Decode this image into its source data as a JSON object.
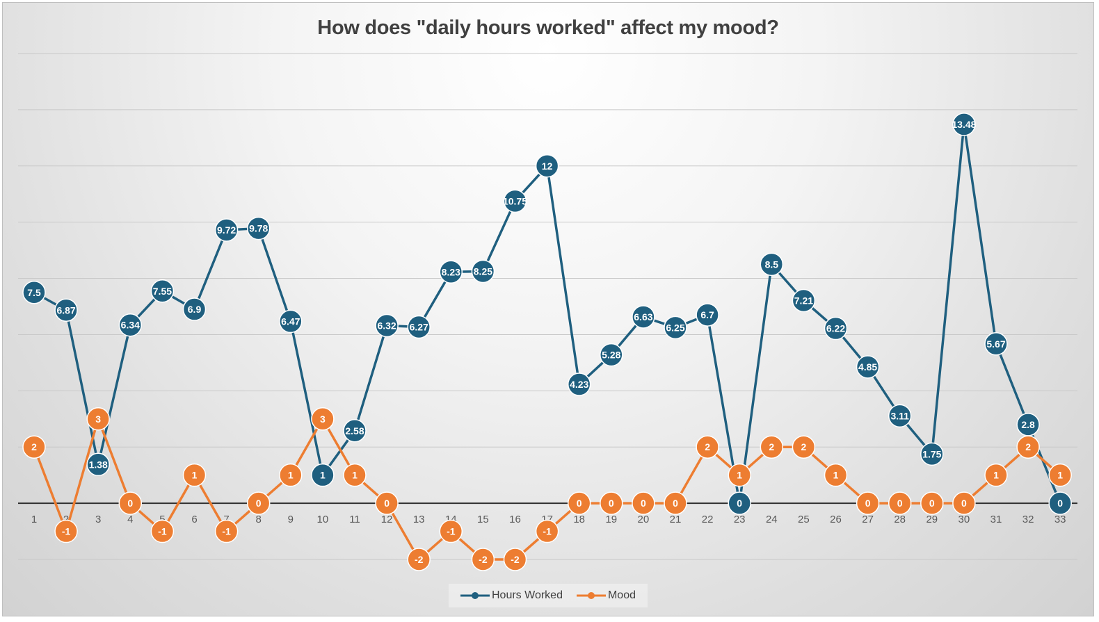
{
  "chart_data": {
    "type": "line",
    "title": "How does \"daily hours worked\" affect my mood?",
    "categories": [
      "1",
      "2",
      "3",
      "4",
      "5",
      "6",
      "7",
      "8",
      "9",
      "10",
      "11",
      "12",
      "13",
      "14",
      "15",
      "16",
      "17",
      "18",
      "19",
      "20",
      "21",
      "22",
      "23",
      "24",
      "25",
      "26",
      "27",
      "28",
      "29",
      "30",
      "31",
      "32",
      "33"
    ],
    "series": [
      {
        "name": "Hours Worked",
        "color": "#1F5F7F",
        "values": [
          7.5,
          6.87,
          1.38,
          6.34,
          7.55,
          6.9,
          9.72,
          9.78,
          6.47,
          1,
          2.58,
          6.32,
          6.27,
          8.23,
          8.25,
          10.75,
          12,
          4.23,
          5.28,
          6.63,
          6.25,
          6.7,
          0,
          8.5,
          7.21,
          6.22,
          4.85,
          3.11,
          1.75,
          13.48,
          5.67,
          2.8,
          0
        ],
        "labels": [
          "7.5",
          "6.87",
          "1.38",
          "6.34",
          "7.55",
          "6.9",
          "9.72",
          "9.78",
          "6.47",
          "1",
          "2.58",
          "6.32",
          "6.27",
          "8.23",
          "8.25",
          "10.75",
          "12",
          "4.23",
          "5.28",
          "6.63",
          "6.25",
          "6.7",
          "0",
          "8.5",
          "7.21",
          "6.22",
          "4.85",
          "3.11",
          "1.75",
          "13.48",
          "5.67",
          "2.8",
          "0"
        ]
      },
      {
        "name": "Mood",
        "color": "#ED7D31",
        "values": [
          2,
          -1,
          3,
          0,
          -1,
          1,
          -1,
          0,
          1,
          3,
          1,
          0,
          -2,
          -1,
          -2,
          -2,
          -1,
          0,
          0,
          0,
          0,
          2,
          1,
          2,
          2,
          1,
          0,
          0,
          0,
          0,
          1,
          2,
          1
        ],
        "labels": [
          "2",
          "-1",
          "3",
          "0",
          "-1",
          "1",
          "-1",
          "0",
          "1",
          "3",
          "1",
          "0",
          "-2",
          "-1",
          "-2",
          "-2",
          "-1",
          "0",
          "0",
          "0",
          "0",
          "2",
          "1",
          "2",
          "2",
          "1",
          "0",
          "0",
          "0",
          "0",
          "1",
          "2",
          "1"
        ]
      }
    ],
    "ylim": [
      -2,
      16
    ],
    "gridlines": true,
    "legend_position": "bottom"
  }
}
